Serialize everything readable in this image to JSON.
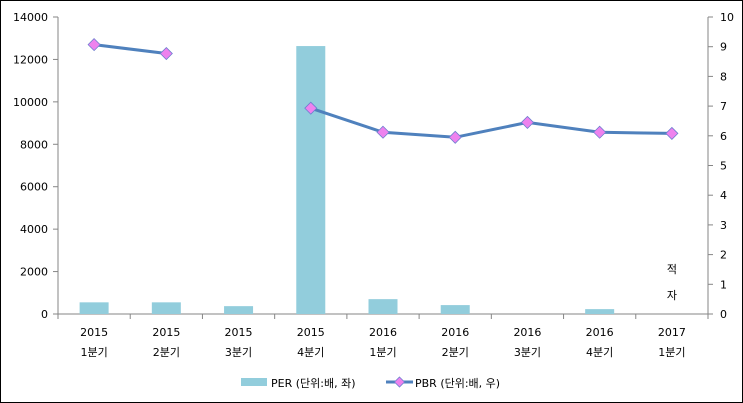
{
  "chart_data": {
    "type": "bar+line",
    "categories": [
      [
        "2015",
        "1분기"
      ],
      [
        "2015",
        "2분기"
      ],
      [
        "2015",
        "3분기"
      ],
      [
        "2015",
        "4분기"
      ],
      [
        "2016",
        "1분기"
      ],
      [
        "2016",
        "2분기"
      ],
      [
        "2016",
        "3분기"
      ],
      [
        "2016",
        "4분기"
      ],
      [
        "2017",
        "1분기"
      ]
    ],
    "series": [
      {
        "name": "PER (단위:배, 좌)",
        "type": "bar",
        "axis": "left",
        "color": "#92CDDC",
        "values": [
          550,
          550,
          370,
          12630,
          700,
          420,
          null,
          230,
          null
        ]
      },
      {
        "name": "PBR (단위:배, 우)",
        "type": "line",
        "axis": "right",
        "color": "#4F81BD",
        "marker_color": "#EE82EE",
        "values": [
          9.07,
          8.77,
          null,
          6.93,
          6.12,
          5.95,
          6.45,
          6.12,
          6.08
        ]
      }
    ],
    "y_left": {
      "min": 0,
      "max": 14000,
      "ticks": [
        0,
        2000,
        4000,
        6000,
        8000,
        10000,
        12000,
        14000
      ]
    },
    "y_right": {
      "min": 0,
      "max": 10,
      "ticks": [
        0,
        1,
        2,
        3,
        4,
        5,
        6,
        7,
        8,
        9,
        10
      ]
    },
    "annotation": {
      "chars": [
        "적",
        "자"
      ],
      "category_index": 8
    },
    "legend_position": "bottom",
    "grid": false
  }
}
